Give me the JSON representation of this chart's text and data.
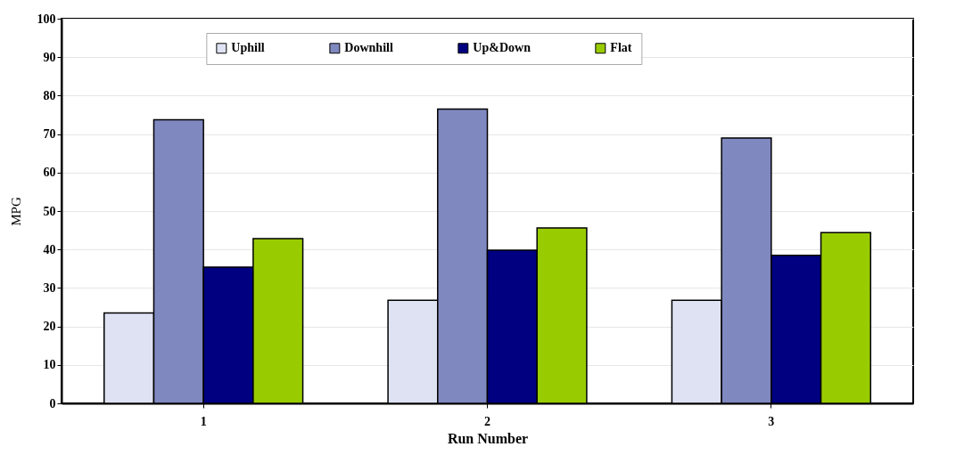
{
  "chart_data": {
    "type": "bar",
    "xlabel": "Run Number",
    "ylabel": "MPG",
    "categories": [
      "1",
      "2",
      "3"
    ],
    "series": [
      {
        "name": "Uphill",
        "color": "#dfe2f2",
        "values": [
          23.5,
          26.8,
          26.8
        ]
      },
      {
        "name": "Downhill",
        "color": "#8088c0",
        "values": [
          73.7,
          76.5,
          69
        ]
      },
      {
        "name": "Up&Down",
        "color": "#000080",
        "values": [
          35.4,
          39.8,
          38.5
        ]
      },
      {
        "name": "Flat",
        "color": "#99cc00",
        "values": [
          42.8,
          45.6,
          44.4
        ]
      }
    ],
    "ylim": [
      0,
      100
    ],
    "yticks": [
      0,
      10,
      20,
      30,
      40,
      50,
      60,
      70,
      80,
      90,
      100
    ],
    "grid": "y",
    "legend": "top"
  }
}
